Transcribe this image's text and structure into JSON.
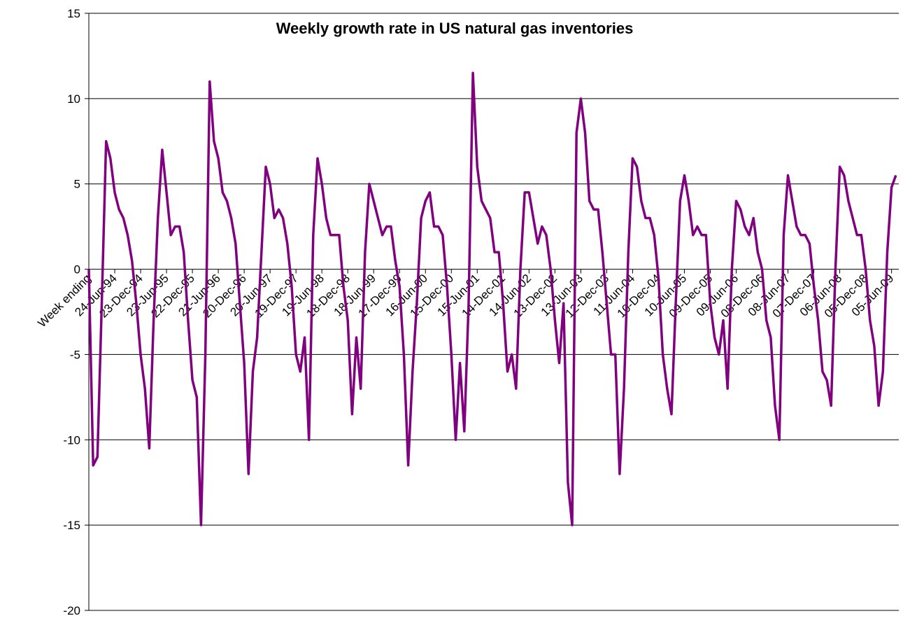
{
  "chart_data": {
    "type": "line",
    "title": "Weekly growth rate in US natural gas inventories",
    "categories": [
      "Week ending",
      null,
      null,
      null,
      null,
      null,
      "24-Jun-94",
      null,
      null,
      null,
      null,
      null,
      "23-Dec-94",
      null,
      null,
      null,
      null,
      null,
      "23-Jun-95",
      null,
      null,
      null,
      null,
      null,
      "22-Dec-95",
      null,
      null,
      null,
      null,
      null,
      "21-Jun-96",
      null,
      null,
      null,
      null,
      null,
      "20-Dec-96",
      null,
      null,
      null,
      null,
      null,
      "20-Jun-97",
      null,
      null,
      null,
      null,
      null,
      "19-Dec-97",
      null,
      null,
      null,
      null,
      null,
      "19-Jun-98",
      null,
      null,
      null,
      null,
      null,
      "18-Dec-98",
      null,
      null,
      null,
      null,
      null,
      "18-Jun-99",
      null,
      null,
      null,
      null,
      null,
      "17-Dec-99",
      null,
      null,
      null,
      null,
      null,
      "16-Jun-00",
      null,
      null,
      null,
      null,
      null,
      "15-Dec-00",
      null,
      null,
      null,
      null,
      null,
      "15-Jun-01",
      null,
      null,
      null,
      null,
      null,
      "14-Dec-01",
      null,
      null,
      null,
      null,
      null,
      "14-Jun-02",
      null,
      null,
      null,
      null,
      null,
      "13-Dec-02",
      null,
      null,
      null,
      null,
      null,
      "13-Jun-03",
      null,
      null,
      null,
      null,
      null,
      "12-Dec-03",
      null,
      null,
      null,
      null,
      null,
      "11-Jun-04",
      null,
      null,
      null,
      null,
      null,
      "10-Dec-04",
      null,
      null,
      null,
      null,
      null,
      "10-Jun-05",
      null,
      null,
      null,
      null,
      null,
      "09-Dec-05",
      null,
      null,
      null,
      null,
      null,
      "09-Jun-06",
      null,
      null,
      null,
      null,
      null,
      "08-Dec-06",
      null,
      null,
      null,
      null,
      null,
      "08-Jun-07",
      null,
      null,
      null,
      null,
      null,
      "07-Dec-07",
      null,
      null,
      null,
      null,
      null,
      "06-Jun-08",
      null,
      null,
      null,
      null,
      null,
      "05-Dec-08",
      null,
      null,
      null,
      null,
      null,
      "05-Jun-09",
      null
    ],
    "series": [
      {
        "name": "Weekly growth rate",
        "color": "#800080",
        "values": [
          0,
          -11.5,
          -11,
          -2,
          7.5,
          6.5,
          4.5,
          3.5,
          3,
          2,
          0.5,
          -2,
          -5,
          -7,
          -10.5,
          -3,
          3,
          7,
          4.5,
          2,
          2.5,
          2.5,
          1,
          -3,
          -6.5,
          -7.5,
          -15,
          -5,
          11,
          7.5,
          6.5,
          4.5,
          4,
          3,
          1.5,
          -2,
          -5.5,
          -12,
          -6,
          -4,
          1,
          6,
          5,
          3,
          3.5,
          3,
          1.5,
          -1,
          -5,
          -6,
          -4,
          -10,
          2,
          6.5,
          5,
          3,
          2,
          2,
          2,
          -1,
          -3,
          -8.5,
          -4,
          -7,
          1,
          5,
          4,
          3,
          2,
          2.5,
          2.5,
          0.5,
          -1,
          -5,
          -11.5,
          -6,
          -2,
          3,
          4,
          4.5,
          2.5,
          2.5,
          2,
          -1,
          -5,
          -10,
          -5.5,
          -9.5,
          -2,
          11.5,
          6,
          4,
          3.5,
          3,
          1,
          1,
          -2,
          -6,
          -5,
          -7,
          0,
          4.5,
          4.5,
          3,
          1.5,
          2.5,
          2,
          0,
          -3,
          -5.5,
          -2,
          -12.5,
          -15,
          8,
          10,
          8,
          4,
          3.5,
          3.5,
          1,
          -2,
          -5,
          -5,
          -12,
          -7,
          1,
          6.5,
          6,
          4,
          3,
          3,
          2,
          -0.5,
          -5,
          -7,
          -8.5,
          -2,
          4,
          5.5,
          4,
          2,
          2.5,
          2,
          2,
          -2,
          -4,
          -5,
          -3,
          -7,
          0,
          4,
          3.5,
          2.5,
          2,
          3,
          1,
          0,
          -3,
          -4,
          -8,
          -10,
          2,
          5.5,
          4,
          2.5,
          2,
          2,
          1.5,
          -1,
          -3,
          -6,
          -6.5,
          -8,
          0,
          6,
          5.5,
          4,
          3,
          2,
          2,
          0,
          -3,
          -4.5,
          -8,
          -6,
          1,
          4.8,
          5.5
        ]
      }
    ],
    "ylim": [
      -20,
      15
    ],
    "yticks": [
      -20,
      -15,
      -10,
      -5,
      0,
      5,
      10,
      15
    ],
    "grid": true
  }
}
